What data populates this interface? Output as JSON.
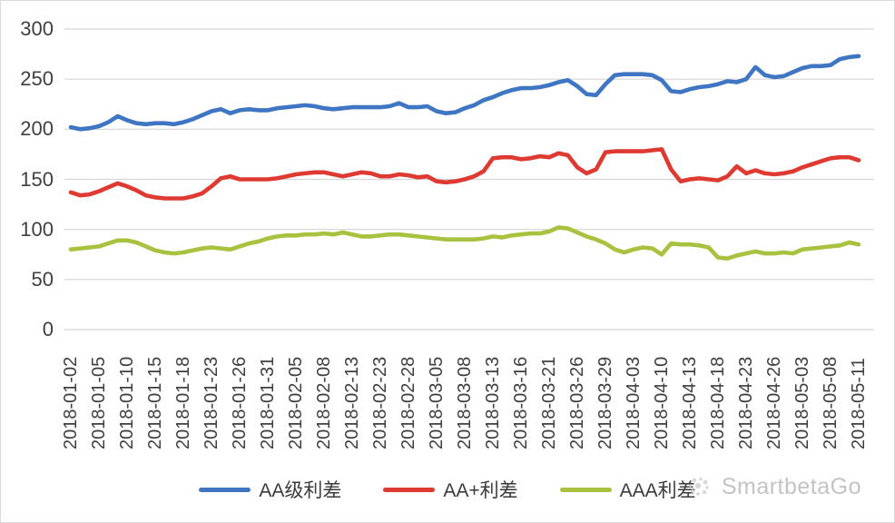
{
  "watermark": {
    "brand": "SmartbetaGo",
    "logo_icon": "dotted-circle-logo"
  },
  "colors": {
    "background": "#FFFFFF",
    "grid": "#D5D5D5",
    "axis_text": "#3F3F3F",
    "border": "#DADADA",
    "watermark_text": "#C3C3C3",
    "series_blue": "#3E76C4",
    "series_red": "#DE3A31",
    "series_green": "#A8C13E"
  },
  "chart_data": {
    "type": "line",
    "title": "",
    "xlabel": "",
    "ylabel": "",
    "ylim": [
      0,
      300
    ],
    "ytick_step": 50,
    "grid": true,
    "legend_position": "bottom",
    "label_every": 3,
    "x_labels": [
      "2018-01-02",
      "2018-01-05",
      "2018-01-10",
      "2018-01-15",
      "2018-01-18",
      "2018-01-23",
      "2018-01-26",
      "2018-01-31",
      "2018-02-05",
      "2018-02-08",
      "2018-02-13",
      "2018-02-23",
      "2018-02-28",
      "2018-03-05",
      "2018-03-08",
      "2018-03-13",
      "2018-03-16",
      "2018-03-21",
      "2018-03-26",
      "2018-03-29",
      "2018-04-03",
      "2018-04-10",
      "2018-04-13",
      "2018-04-18",
      "2018-04-23",
      "2018-04-26",
      "2018-05-03",
      "2018-05-08",
      "2018-05-11"
    ],
    "series": [
      {
        "name": "AA级利差",
        "color": "#3E76C4",
        "values": [
          202,
          200,
          201,
          203,
          207,
          213,
          209,
          206,
          205,
          206,
          206,
          205,
          207,
          210,
          214,
          218,
          220,
          216,
          219,
          220,
          219,
          219,
          221,
          222,
          223,
          224,
          223,
          221,
          220,
          221,
          222,
          222,
          222,
          222,
          223,
          226,
          222,
          222,
          223,
          218,
          216,
          217,
          221,
          224,
          229,
          232,
          236,
          239,
          241,
          241,
          242,
          244,
          247,
          249,
          243,
          235,
          234,
          245,
          254,
          255,
          255,
          255,
          254,
          249,
          238,
          237,
          240,
          242,
          243,
          245,
          248,
          247,
          250,
          262,
          254,
          252,
          253,
          257,
          261,
          263,
          263,
          264,
          270,
          272,
          273
        ]
      },
      {
        "name": "AA+利差",
        "color": "#DE3A31",
        "values": [
          137,
          134,
          135,
          138,
          142,
          146,
          143,
          139,
          134,
          132,
          131,
          131,
          131,
          133,
          136,
          143,
          151,
          153,
          150,
          150,
          150,
          150,
          151,
          153,
          155,
          156,
          157,
          157,
          155,
          153,
          155,
          157,
          156,
          153,
          153,
          155,
          154,
          152,
          153,
          148,
          147,
          148,
          150,
          153,
          158,
          171,
          172,
          172,
          170,
          171,
          173,
          172,
          176,
          174,
          162,
          156,
          160,
          177,
          178,
          178,
          178,
          178,
          179,
          180,
          160,
          148,
          150,
          151,
          150,
          149,
          153,
          163,
          156,
          159,
          156,
          155,
          156,
          158,
          162,
          165,
          168,
          171,
          172,
          172,
          169
        ]
      },
      {
        "name": "AAA利差",
        "color": "#A8C13E",
        "values": [
          80,
          81,
          82,
          83,
          86,
          89,
          89,
          87,
          83,
          79,
          77,
          76,
          77,
          79,
          81,
          82,
          81,
          80,
          83,
          86,
          88,
          91,
          93,
          94,
          94,
          95,
          95,
          96,
          95,
          97,
          95,
          93,
          93,
          94,
          95,
          95,
          94,
          93,
          92,
          91,
          90,
          90,
          90,
          90,
          91,
          93,
          92,
          94,
          95,
          96,
          96,
          98,
          102,
          101,
          97,
          93,
          90,
          86,
          80,
          77,
          80,
          82,
          81,
          75,
          86,
          85,
          85,
          84,
          82,
          72,
          71,
          74,
          76,
          78,
          76,
          76,
          77,
          76,
          80,
          81,
          82,
          83,
          84,
          87,
          85
        ]
      }
    ]
  }
}
